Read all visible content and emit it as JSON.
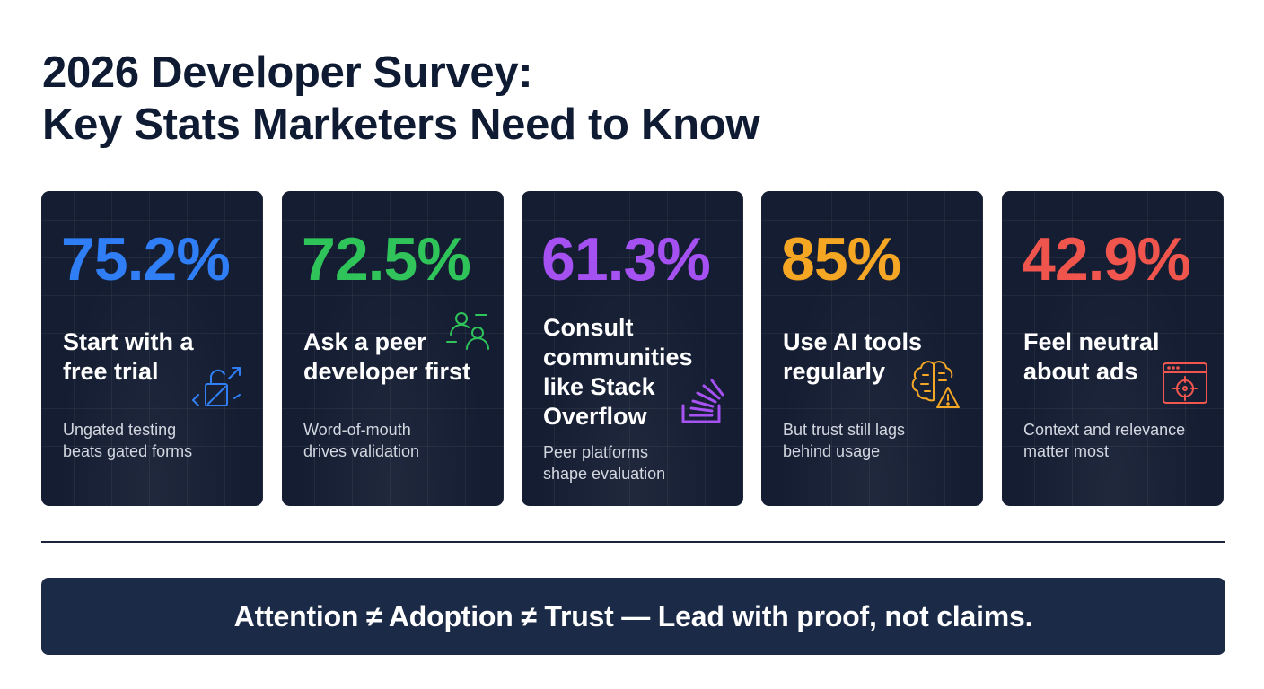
{
  "title": {
    "line1": "2026 Developer Survey:",
    "line2": "Key Stats Marketers Need to Know"
  },
  "cards": [
    {
      "stat": "75.2%",
      "color": "#2f7ef6",
      "headline": [
        "Start with a",
        "free trial"
      ],
      "sub": [
        "Ungated testing",
        "beats gated forms"
      ],
      "icon": "unlocked-padlock-icon"
    },
    {
      "stat": "72.5%",
      "color": "#2fc45a",
      "headline": [
        "Ask a peer",
        "developer first"
      ],
      "sub": [
        "Word-of-mouth",
        "drives validation"
      ],
      "icon": "people-icon"
    },
    {
      "stat": "61.3%",
      "color": "#a551f2",
      "headline": [
        "Consult",
        "communities",
        "like Stack",
        "Overflow"
      ],
      "sub": [
        "Peer platforms",
        "shape evaluation"
      ],
      "icon": "stack-overflow-icon"
    },
    {
      "stat": "85%",
      "color": "#f5a623",
      "headline": [
        "Use AI tools",
        "regularly"
      ],
      "sub": [
        "But trust still lags",
        "behind usage"
      ],
      "icon": "brain-warning-icon"
    },
    {
      "stat": "42.9%",
      "color": "#f0554d",
      "headline": [
        "Feel neutral",
        "about ads"
      ],
      "sub": [
        "Context and relevance",
        "matter most"
      ],
      "icon": "browser-target-icon"
    }
  ],
  "banner": {
    "text": "Attention ≠ Adoption ≠ Trust — Lead with proof, not claims."
  }
}
